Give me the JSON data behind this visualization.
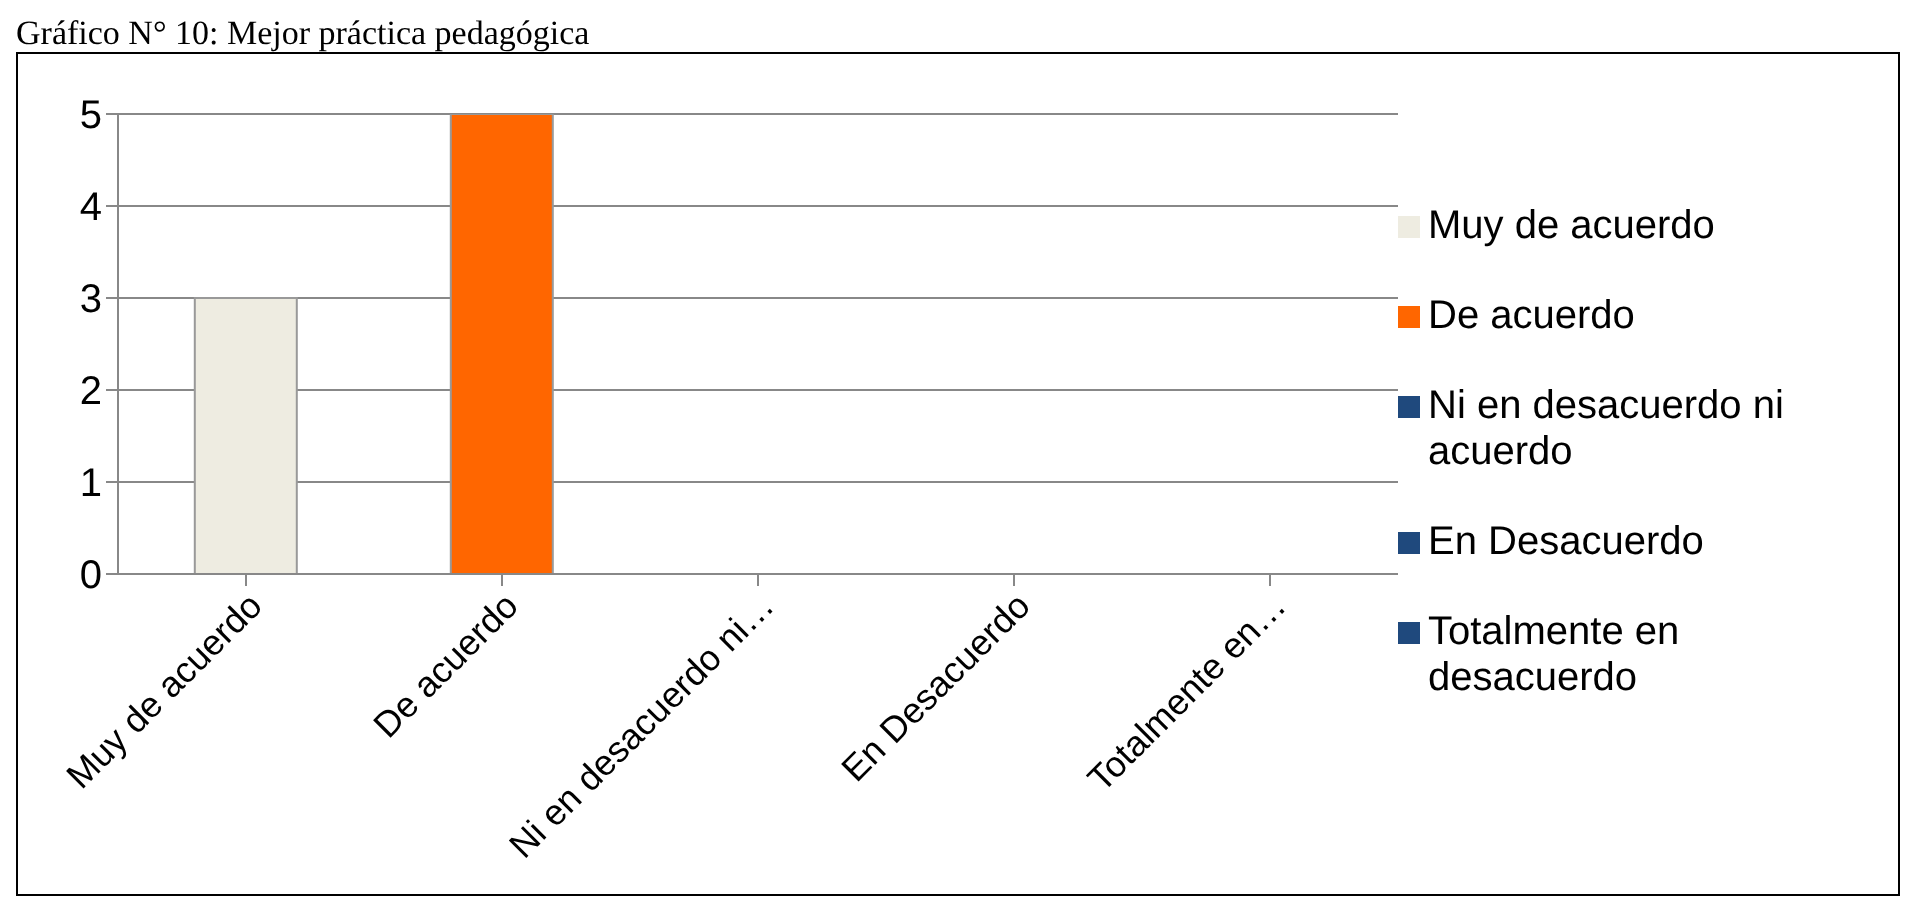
{
  "chart_data": {
    "type": "bar",
    "title": "Gráfico N° 10: Mejor práctica pedagógica",
    "categories": [
      "Muy de acuerdo",
      "De acuerdo",
      "Ni en desacuerdo ni…",
      "En Desacuerdo",
      "Totalmente en…"
    ],
    "series": [
      {
        "name": "Muy de acuerdo",
        "color": "#eeece1",
        "values": [
          3,
          null,
          null,
          null,
          null
        ]
      },
      {
        "name": "De acuerdo",
        "color": "#ff6600",
        "values": [
          null,
          5,
          null,
          null,
          null
        ]
      },
      {
        "name": "Ni en desacuerdo ni acuerdo",
        "color": "#1f497d",
        "values": [
          null,
          null,
          0,
          null,
          null
        ]
      },
      {
        "name": "En Desacuerdo",
        "color": "#1f497d",
        "values": [
          null,
          null,
          null,
          0,
          null
        ]
      },
      {
        "name": "Totalmente en desacuerdo",
        "color": "#1f497d",
        "values": [
          null,
          null,
          null,
          null,
          0
        ]
      }
    ],
    "stacked": true,
    "ylim": [
      0,
      5
    ],
    "yticks": [
      0,
      1,
      2,
      3,
      4,
      5
    ],
    "grid": "y",
    "legend": "right"
  }
}
